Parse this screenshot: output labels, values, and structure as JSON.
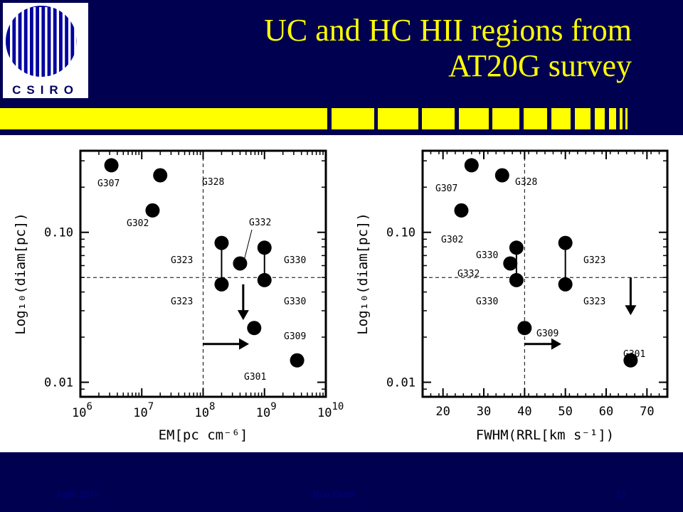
{
  "slide": {
    "title_line1": "UC and HC HII regions from",
    "title_line2": "AT20G survey",
    "logo_text": "CSIRO",
    "footer_date": "April 2010",
    "footer_author": "Ron Ekers",
    "footer_page": "15",
    "colors": {
      "background": "#000050",
      "title": "#ffff00",
      "stripe": "#ffff00",
      "footer_text": "#000080"
    }
  },
  "chart_data": [
    {
      "type": "scatter",
      "xlabel": "EM[pc cm⁻⁶]",
      "ylabel": "Log₁₀(diam[pc])",
      "xscale": "log",
      "yscale": "log",
      "xlim": [
        1000000.0,
        10000000000.0
      ],
      "ylim": [
        0.008,
        0.35
      ],
      "x_ticks": [
        {
          "value": 1000000.0,
          "base": "10",
          "exp": "6"
        },
        {
          "value": 10000000.0,
          "base": "10",
          "exp": "7"
        },
        {
          "value": 100000000.0,
          "base": "10",
          "exp": "8"
        },
        {
          "value": 1000000000.0,
          "base": "10",
          "exp": "9"
        },
        {
          "value": 10000000000.0,
          "base": "10",
          "exp": "10"
        }
      ],
      "y_ticks": [
        {
          "value": 0.1,
          "label": "0.10"
        },
        {
          "value": 0.01,
          "label": "0.01"
        }
      ],
      "ref_lines": {
        "x": 100000000.0,
        "y": 0.05
      },
      "points": [
        {
          "label": "G307",
          "x": 3200000.0,
          "y": 0.28
        },
        {
          "label": "G328",
          "x": 20000000.0,
          "y": 0.24
        },
        {
          "label": "G302",
          "x": 15000000.0,
          "y": 0.14
        },
        {
          "label": "G323",
          "x": 200000000.0,
          "y": 0.085
        },
        {
          "label": "G323",
          "x": 200000000.0,
          "y": 0.045
        },
        {
          "label": "G332",
          "x": 400000000.0,
          "y": 0.062
        },
        {
          "label": "G330",
          "x": 1000000000.0,
          "y": 0.079
        },
        {
          "label": "G330",
          "x": 1000000000.0,
          "y": 0.048
        },
        {
          "label": "G309",
          "x": 680000000.0,
          "y": 0.023
        },
        {
          "label": "G301",
          "x": 3400000000.0,
          "y": 0.014
        }
      ],
      "connections": [
        [
          3,
          4
        ],
        [
          6,
          7
        ]
      ],
      "arrows": [
        {
          "x": 450000000.0,
          "y_from": 0.045,
          "y_to": 0.026
        },
        {
          "y": 0.018,
          "x_from": 100000000.0,
          "x_to": 560000000.0
        }
      ]
    },
    {
      "type": "scatter",
      "xlabel": "FWHM(RRL[km s⁻¹])",
      "ylabel": "Log₁₀(diam[pc])",
      "xscale": "linear",
      "yscale": "log",
      "xlim": [
        15,
        75
      ],
      "ylim": [
        0.008,
        0.35
      ],
      "x_ticks": [
        {
          "value": 20,
          "label": "20"
        },
        {
          "value": 30,
          "label": "30"
        },
        {
          "value": 40,
          "label": "40"
        },
        {
          "value": 50,
          "label": "50"
        },
        {
          "value": 60,
          "label": "60"
        },
        {
          "value": 70,
          "label": "70"
        }
      ],
      "y_ticks": [
        {
          "value": 0.1,
          "label": "0.10"
        },
        {
          "value": 0.01,
          "label": "0.01"
        }
      ],
      "ref_lines": {
        "x": 40,
        "y": 0.05
      },
      "points": [
        {
          "label": "G307",
          "x": 27,
          "y": 0.28
        },
        {
          "label": "G328",
          "x": 34.5,
          "y": 0.24
        },
        {
          "label": "G302",
          "x": 24.5,
          "y": 0.14
        },
        {
          "label": "G330",
          "x": 38,
          "y": 0.079
        },
        {
          "label": "G332",
          "x": 36.5,
          "y": 0.062
        },
        {
          "label": "G330",
          "x": 38,
          "y": 0.048
        },
        {
          "label": "G323",
          "x": 50,
          "y": 0.085
        },
        {
          "label": "G323",
          "x": 50,
          "y": 0.045
        },
        {
          "label": "G309",
          "x": 40,
          "y": 0.023
        },
        {
          "label": "G301",
          "x": 66,
          "y": 0.014
        }
      ],
      "connections": [
        [
          3,
          5
        ],
        [
          6,
          7
        ]
      ],
      "arrows": [
        {
          "x": 66,
          "y_from": 0.05,
          "y_to": 0.028
        },
        {
          "y": 0.018,
          "x_from": 40,
          "x_to": 49
        }
      ]
    }
  ]
}
